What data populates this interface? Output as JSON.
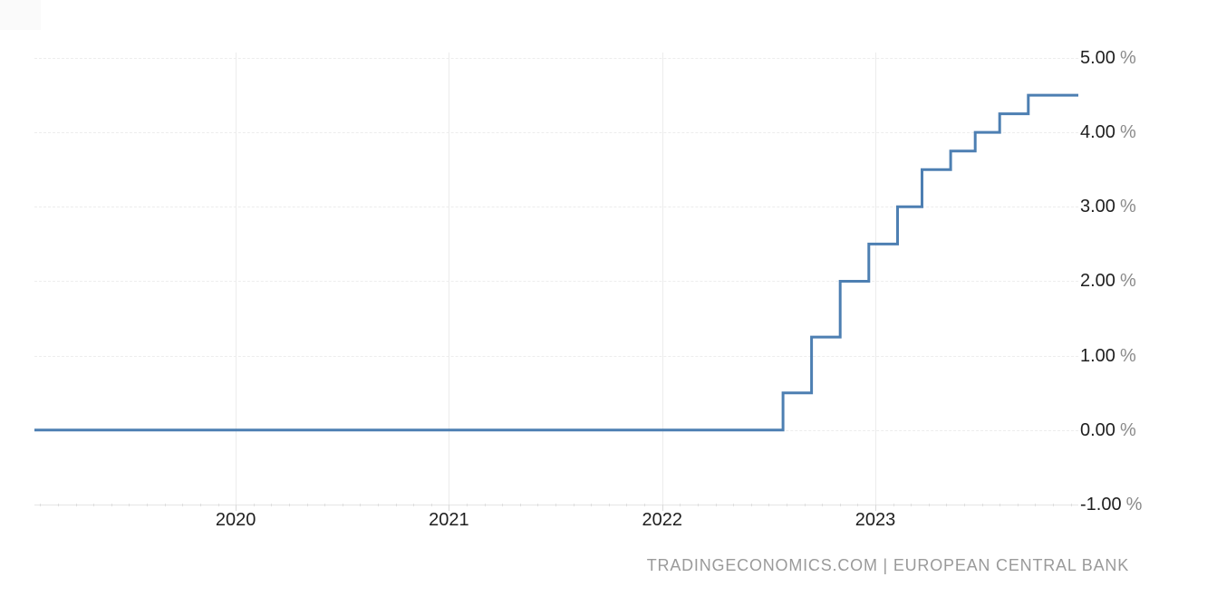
{
  "chart": {
    "line_color": "#4d7fb2",
    "grid_color": "#ededed",
    "axis_text_color": "#1f1f1f",
    "percent_sign_color": "#8a8a8a",
    "y_axis": {
      "tick_values": [
        5,
        4,
        3,
        2,
        1,
        0,
        -1
      ],
      "tick_labels": [
        "5.00",
        "4.00",
        "3.00",
        "2.00",
        "1.00",
        "0.00",
        "-1.00"
      ],
      "suffix": "%"
    },
    "x_axis": {
      "tick_years": [
        2020,
        2021,
        2022,
        2023
      ],
      "tick_labels": [
        "2020",
        "2021",
        "2022",
        "2023"
      ]
    },
    "source_note": "TRADINGECONOMICS.COM | EUROPEAN CENTRAL BANK"
  },
  "chart_data": {
    "type": "line",
    "subtype": "step-after",
    "series_name": "European Central Bank interest rate (%)",
    "steps": [
      {
        "date": "2019-01-21",
        "value": 0.0
      },
      {
        "date": "2022-07-27",
        "value": 0.5
      },
      {
        "date": "2022-09-14",
        "value": 1.25
      },
      {
        "date": "2022-11-02",
        "value": 2.0
      },
      {
        "date": "2022-12-21",
        "value": 2.5
      },
      {
        "date": "2023-02-08",
        "value": 3.0
      },
      {
        "date": "2023-03-22",
        "value": 3.5
      },
      {
        "date": "2023-05-10",
        "value": 3.75
      },
      {
        "date": "2023-06-21",
        "value": 4.0
      },
      {
        "date": "2023-08-02",
        "value": 4.25
      },
      {
        "date": "2023-09-20",
        "value": 4.5
      }
    ],
    "end_date": "2023-12-14",
    "ylim": [
      -1.0,
      5.0
    ],
    "xlim_years": [
      2019.056,
      2023.952
    ],
    "grid": "on",
    "legend": "none"
  }
}
